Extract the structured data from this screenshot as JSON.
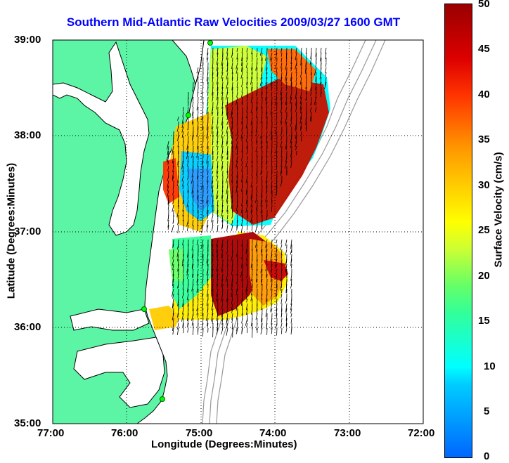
{
  "title": "Southern Mid-Atlantic Raw Velocities 2009/03/27 1600 GMT",
  "x_axis": {
    "label": "Longitude (Degrees:Minutes)",
    "ticks": [
      "77:00",
      "76:00",
      "75:00",
      "74:00",
      "73:00",
      "72:00"
    ]
  },
  "y_axis": {
    "label": "Latitude (Degrees:Minutes)",
    "ticks": [
      "39:00",
      "38:00",
      "37:00",
      "36:00",
      "35:00"
    ]
  },
  "colorbar": {
    "label": "Surface Velocity (cm/s)",
    "ticks": [
      "50",
      "45",
      "40",
      "35",
      "30",
      "25",
      "20",
      "15",
      "10",
      "5",
      "0"
    ],
    "min": 0,
    "max": 50
  },
  "map": {
    "lon_range": [
      -77,
      -72
    ],
    "lat_range": [
      35,
      39
    ],
    "land_color": "#5cf5a5",
    "grid": "dotted",
    "stations": [
      {
        "lon": -74.9,
        "lat": 38.97
      },
      {
        "lon": -75.1,
        "lat": 38.2
      },
      {
        "lon": -75.7,
        "lat": 36.18
      },
      {
        "lon": -75.47,
        "lat": 35.23
      }
    ]
  },
  "colors": {
    "title": "#0000ff",
    "station": "#00ff00"
  }
}
